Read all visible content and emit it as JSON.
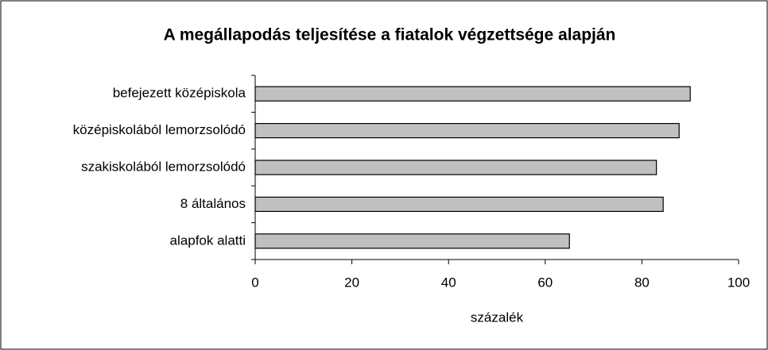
{
  "chart_data": {
    "type": "bar",
    "orientation": "horizontal",
    "title": "A megállapodás teljesítése a fiatalok végzettsége alapján",
    "categories": [
      "befejezett középiskola",
      "középiskolából lemorzsolódó",
      "szakiskolából lemorzsolódó",
      "8 általános",
      "alapfok alatti"
    ],
    "values": [
      90,
      87.7,
      83,
      84.4,
      65
    ],
    "color": "#c0c0c0",
    "xlabel": "százalék",
    "xlim": [
      0,
      100
    ],
    "xticks": [
      0,
      20,
      40,
      60,
      80,
      100
    ],
    "grid": false
  }
}
